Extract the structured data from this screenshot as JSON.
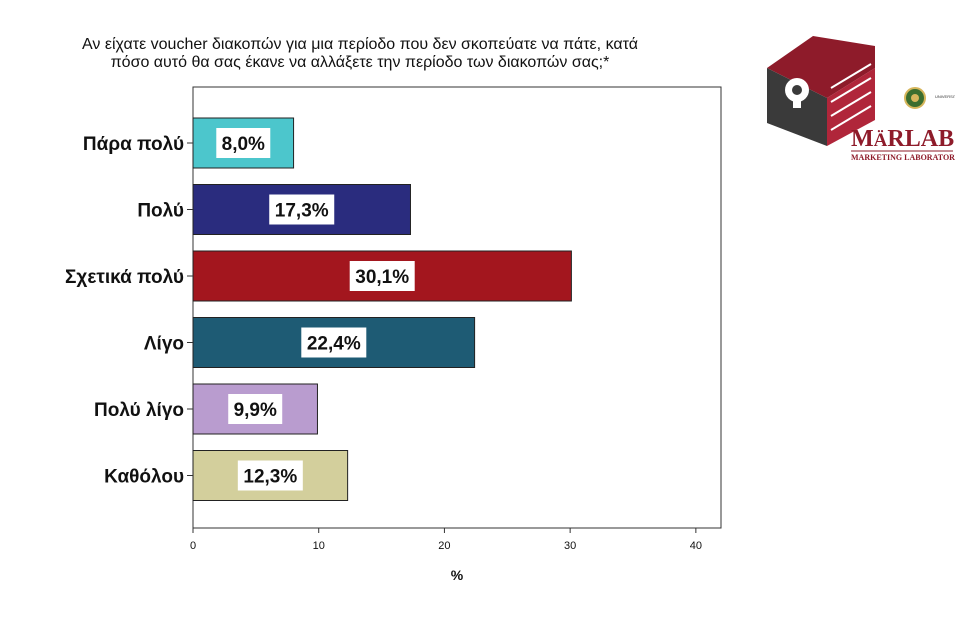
{
  "title_lines": [
    "Αν είχατε voucher διακοπών για μια περίοδο που δεν σκοπεύατε να πάτε, κατά",
    "πόσο αυτό θα σας έκανε να αλλάξετε την περίοδο των διακοπών σας;*"
  ],
  "chart_data": {
    "type": "bar",
    "orientation": "horizontal",
    "categories": [
      "Πάρα πολύ",
      "Πολύ",
      "Σχετικά πολύ",
      "Λίγο",
      "Πολύ λίγο",
      "Καθόλου"
    ],
    "values": [
      8.0,
      17.3,
      30.1,
      22.4,
      9.9,
      12.3
    ],
    "value_labels": [
      "8,0%",
      "17,3%",
      "30,1%",
      "22,4%",
      "9,9%",
      "12,3%"
    ],
    "colors": [
      "#4cc6cc",
      "#2a2c7e",
      "#a3161e",
      "#1e5b74",
      "#b99ccf",
      "#d3cf9c"
    ],
    "xlabel": "%",
    "xlim": [
      0,
      42
    ],
    "xticks": [
      "0",
      "10",
      "20",
      "30",
      "40"
    ],
    "xtick_values": [
      0,
      10,
      20,
      30,
      40
    ],
    "grid": false
  },
  "logo": {
    "brand_prefix": "M",
    "brand_accent": "Ä",
    "brand_suffix": "RLAB",
    "brand_full": "MÄRLAB",
    "subtitle": "MARKETING LABORATORY",
    "seal_text": "UNIVERSITY OF MACEDONIA",
    "brand_color": "#8e1b2a"
  }
}
